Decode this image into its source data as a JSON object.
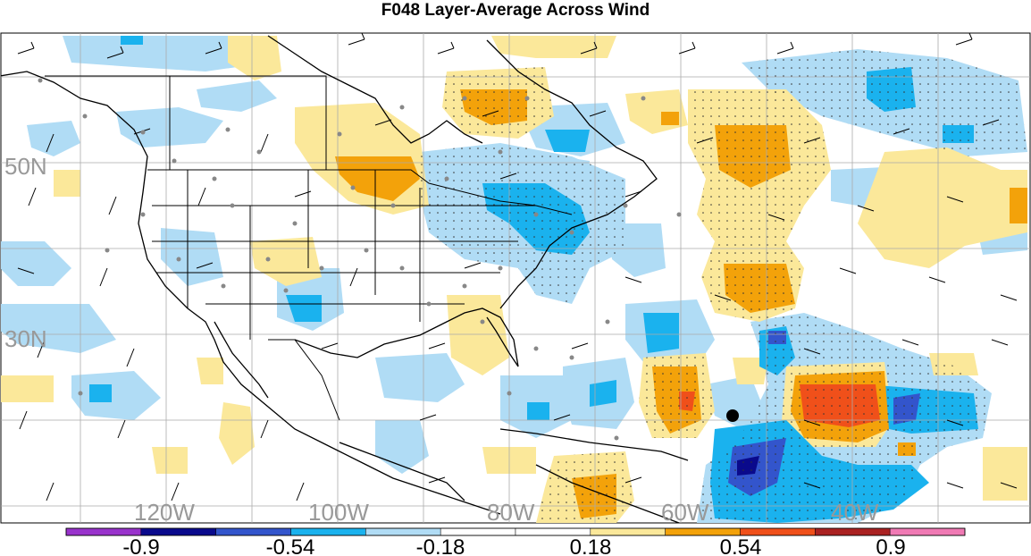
{
  "title": "F048 Layer-Average Across Wind",
  "map": {
    "lat_labels": [
      "50N",
      "30N"
    ],
    "lon_labels": [
      "120W",
      "100W",
      "80W",
      "60W",
      "40W"
    ],
    "marker": "storm-center-marker"
  },
  "legend": {
    "tick_labels": [
      "-0.9",
      "-0.54",
      "-0.18",
      "0.18",
      "0.54",
      "0.9"
    ],
    "bins": [
      {
        "color": "#9933cc"
      },
      {
        "color": "#0a0a8c"
      },
      {
        "color": "#3355cc"
      },
      {
        "color": "#1ab2ee"
      },
      {
        "color": "#b0dcf5"
      },
      {
        "color": "#ffffff"
      },
      {
        "color": "#ffffff"
      },
      {
        "color": "#fbe89a"
      },
      {
        "color": "#f3a20a"
      },
      {
        "color": "#f0501a"
      },
      {
        "color": "#aa2222"
      },
      {
        "color": "#f07ab4"
      }
    ]
  }
}
